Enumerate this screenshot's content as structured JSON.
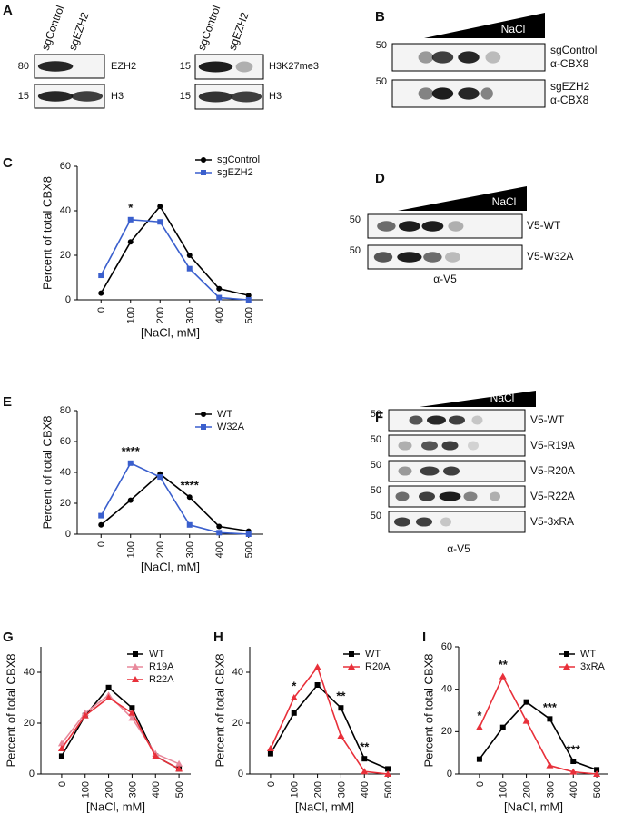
{
  "panel_labels": [
    "A",
    "B",
    "C",
    "D",
    "E",
    "F",
    "G",
    "H",
    "I"
  ],
  "blot_a": {
    "lanes": [
      "sgControl",
      "sgEZH2"
    ],
    "left_rows": [
      {
        "marker": "80",
        "label": "EZH2"
      },
      {
        "marker": "15",
        "label": "H3"
      }
    ],
    "right_rows": [
      {
        "marker": "15",
        "label": "H3K27me3"
      },
      {
        "marker": "15",
        "label": "H3"
      }
    ]
  },
  "blot_b": {
    "gradient": "NaCl",
    "rows": [
      {
        "marker": "50",
        "label": [
          "sgControl",
          "α-CBX8"
        ]
      },
      {
        "marker": "50",
        "label": [
          "sgEZH2",
          "α-CBX8"
        ]
      }
    ]
  },
  "blot_d": {
    "gradient": "NaCl",
    "rows": [
      {
        "marker": "50",
        "label": "V5-WT"
      },
      {
        "marker": "50",
        "label": "V5-W32A"
      }
    ],
    "antibody": "α-V5"
  },
  "blot_f": {
    "gradient": "NaCl",
    "rows": [
      {
        "marker": "50",
        "label": "V5-WT"
      },
      {
        "marker": "50",
        "label": "V5-R19A"
      },
      {
        "marker": "50",
        "label": "V5-R20A"
      },
      {
        "marker": "50",
        "label": "V5-R22A"
      },
      {
        "marker": "50",
        "label": "V5-3xRA"
      }
    ],
    "antibody": "α-V5"
  },
  "chart_data": [
    {
      "type": "line",
      "xlabel": "[NaCl, mM]",
      "ylabel": "Percent of total CBX8",
      "categories": [
        "0",
        "100",
        "200",
        "300",
        "400",
        "500"
      ],
      "ylim": [
        0,
        60
      ],
      "yticks": [
        0,
        20,
        40,
        60
      ],
      "series": [
        {
          "name": "sgControl",
          "color": "#000000",
          "marker": "circle",
          "values": [
            3,
            26,
            42,
            20,
            5,
            2
          ]
        },
        {
          "name": "sgEZH2",
          "color": "#3a5fcd",
          "marker": "square",
          "values": [
            11,
            36,
            35,
            14,
            1,
            0
          ]
        }
      ],
      "annotations": [
        {
          "text": "*",
          "at": "100"
        }
      ]
    },
    {
      "type": "line",
      "xlabel": "[NaCl, mM]",
      "ylabel": "Percent of total CBX8",
      "categories": [
        "0",
        "100",
        "200",
        "300",
        "400",
        "500"
      ],
      "ylim": [
        0,
        80
      ],
      "yticks": [
        0,
        20,
        40,
        60,
        80
      ],
      "series": [
        {
          "name": "WT",
          "color": "#000000",
          "marker": "circle",
          "values": [
            6,
            22,
            39,
            24,
            5,
            2
          ]
        },
        {
          "name": "W32A",
          "color": "#3a5fcd",
          "marker": "square",
          "values": [
            12,
            46,
            37,
            6,
            1,
            0
          ]
        }
      ],
      "annotations": [
        {
          "text": "****",
          "at": "100"
        },
        {
          "text": "****",
          "at": "300"
        }
      ]
    },
    {
      "type": "line",
      "xlabel": "[NaCl, mM]",
      "ylabel": "Percent of total CBX8",
      "categories": [
        "0",
        "100",
        "200",
        "300",
        "400",
        "500"
      ],
      "ylim": [
        0,
        50
      ],
      "yticks": [
        0,
        20,
        40
      ],
      "series": [
        {
          "name": "WT",
          "color": "#000000",
          "marker": "square",
          "values": [
            7,
            23,
            34,
            26,
            7,
            2
          ]
        },
        {
          "name": "R19A",
          "color": "#e8899c",
          "marker": "triangle",
          "values": [
            12,
            24,
            31,
            22,
            8,
            4
          ]
        },
        {
          "name": "R22A",
          "color": "#e8303a",
          "marker": "triangle",
          "values": [
            10,
            23,
            30,
            24,
            7,
            2
          ]
        }
      ],
      "annotations": []
    },
    {
      "type": "line",
      "xlabel": "[NaCl, mM]",
      "ylabel": "Percent of total CBX8",
      "categories": [
        "0",
        "100",
        "200",
        "300",
        "400",
        "500"
      ],
      "ylim": [
        0,
        50
      ],
      "yticks": [
        0,
        20,
        40
      ],
      "series": [
        {
          "name": "WT",
          "color": "#000000",
          "marker": "square",
          "values": [
            8,
            24,
            35,
            26,
            6,
            2
          ]
        },
        {
          "name": "R20A",
          "color": "#e8303a",
          "marker": "triangle",
          "values": [
            10,
            30,
            42,
            15,
            1,
            0
          ]
        }
      ],
      "annotations": [
        {
          "text": "*",
          "at": "100"
        },
        {
          "text": "**",
          "at": "300"
        },
        {
          "text": "**",
          "at": "400"
        }
      ]
    },
    {
      "type": "line",
      "xlabel": "[NaCl, mM]",
      "ylabel": "Percent of total CBX8",
      "categories": [
        "0",
        "100",
        "200",
        "300",
        "400",
        "500"
      ],
      "ylim": [
        0,
        60
      ],
      "yticks": [
        0,
        20,
        40,
        60
      ],
      "series": [
        {
          "name": "WT",
          "color": "#000000",
          "marker": "square",
          "values": [
            7,
            22,
            34,
            26,
            6,
            2
          ]
        },
        {
          "name": "3xRA",
          "color": "#e8303a",
          "marker": "triangle",
          "values": [
            22,
            46,
            25,
            4,
            1,
            0
          ]
        }
      ],
      "annotations": [
        {
          "text": "*",
          "at": "0"
        },
        {
          "text": "**",
          "at": "100"
        },
        {
          "text": "***",
          "at": "300"
        },
        {
          "text": "***",
          "at": "400"
        }
      ]
    }
  ]
}
